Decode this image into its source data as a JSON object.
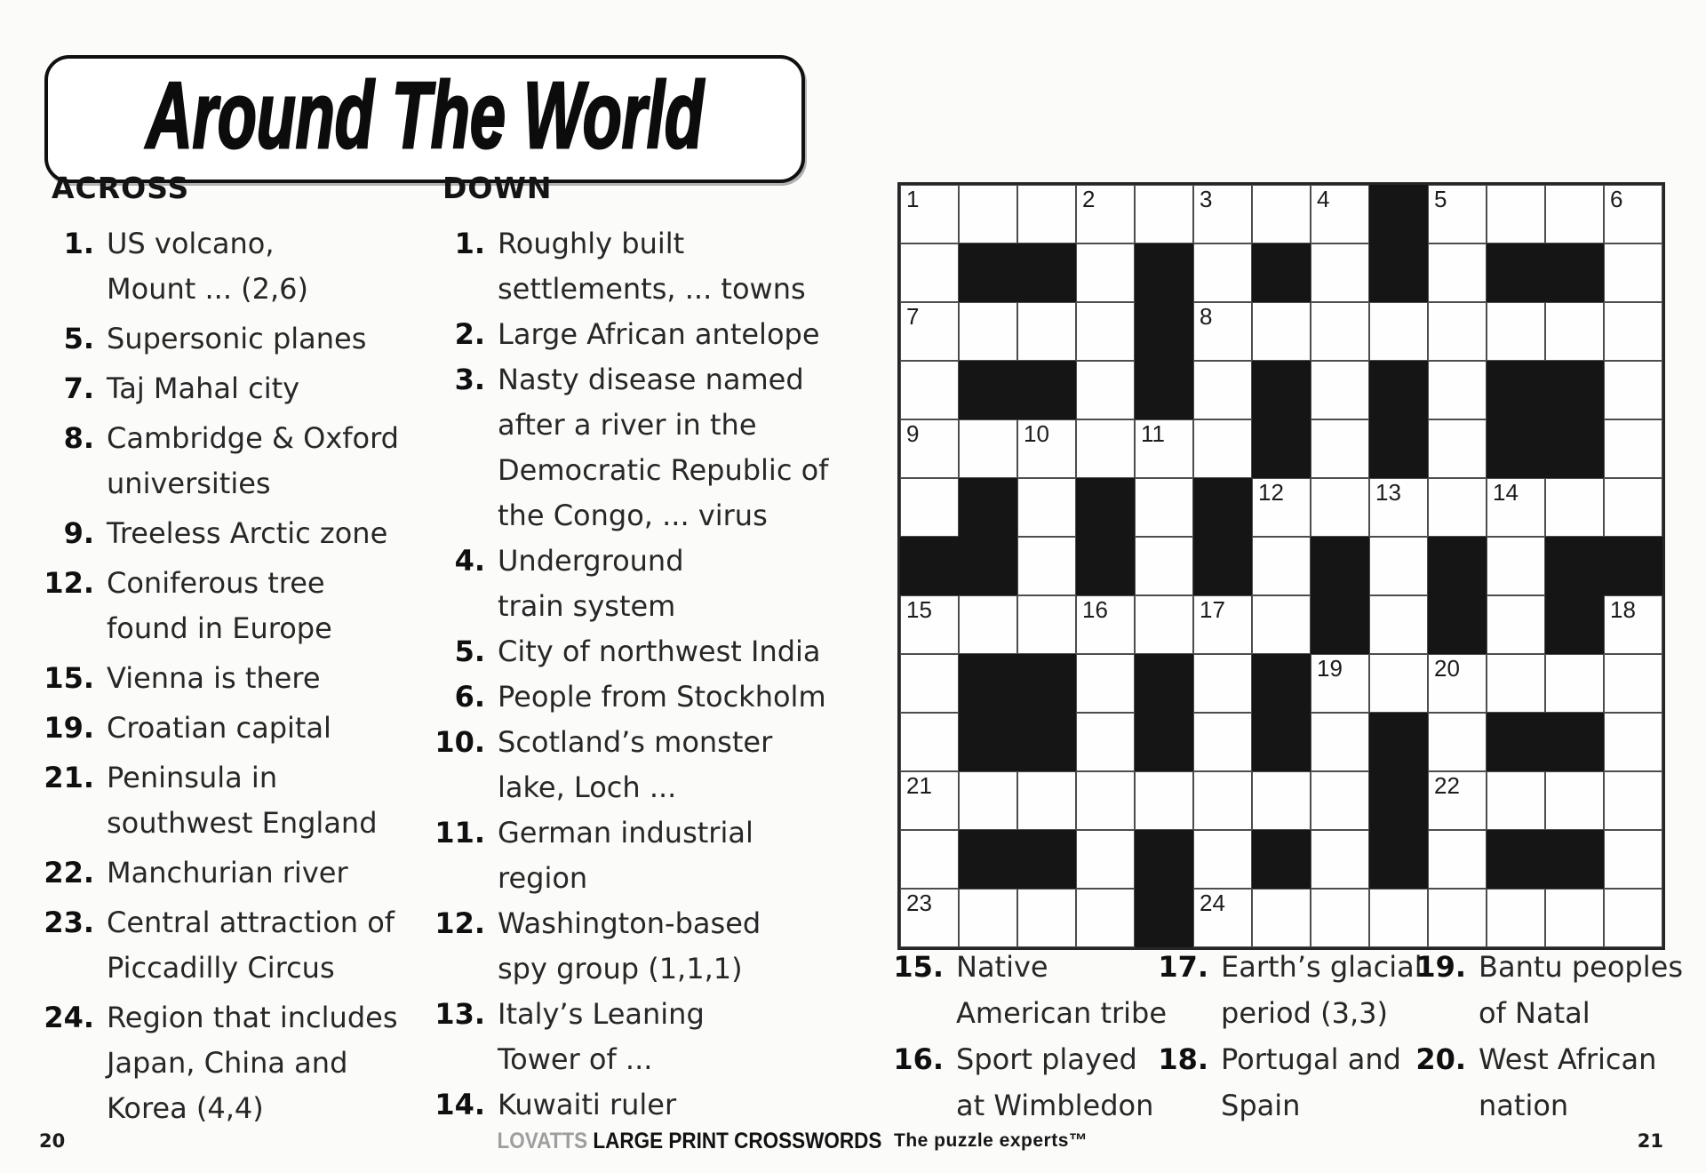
{
  "title": "Around The World",
  "page": {
    "left_page_number": "20",
    "right_page_number": "21",
    "footer_brand_light": "LOVATTS ",
    "footer_brand_bold": "LARGE PRINT CROSSWORDS",
    "tagline": "The puzzle experts™"
  },
  "colors": {
    "cell_black": "#151515",
    "paper": "#fbfbfa",
    "text": "#242424",
    "brand_gray": "#9e9e9e"
  },
  "across": {
    "header": "ACROSS",
    "clues": [
      {
        "num": "1.",
        "lines": [
          "US volcano,",
          "Mount ... (2,6)"
        ]
      },
      {
        "num": "5.",
        "lines": [
          "Supersonic planes"
        ]
      },
      {
        "num": "7.",
        "lines": [
          "Taj Mahal city"
        ]
      },
      {
        "num": "8.",
        "lines": [
          "Cambridge & Oxford",
          "universities"
        ]
      },
      {
        "num": "9.",
        "lines": [
          "Treeless Arctic zone"
        ]
      },
      {
        "num": "12.",
        "lines": [
          "Coniferous tree",
          "found in Europe"
        ]
      },
      {
        "num": "15.",
        "lines": [
          "Vienna is there"
        ]
      },
      {
        "num": "19.",
        "lines": [
          "Croatian capital"
        ]
      },
      {
        "num": "21.",
        "lines": [
          "Peninsula in",
          "southwest England"
        ]
      },
      {
        "num": "22.",
        "lines": [
          "Manchurian river"
        ]
      },
      {
        "num": "23.",
        "lines": [
          "Central attraction of",
          "Piccadilly Circus"
        ]
      },
      {
        "num": "24.",
        "lines": [
          "Region that includes",
          "Japan, China and",
          "Korea (4,4)"
        ]
      }
    ]
  },
  "down": {
    "header": "DOWN",
    "clues": [
      {
        "num": "1.",
        "lines": [
          "Roughly built",
          "settlements, ... towns"
        ]
      },
      {
        "num": "2.",
        "lines": [
          "Large African antelope"
        ]
      },
      {
        "num": "3.",
        "lines": [
          "Nasty disease named",
          "after a river in the",
          "Democratic Republic of",
          "the Congo, ... virus"
        ]
      },
      {
        "num": "4.",
        "lines": [
          "Underground",
          "train system"
        ]
      },
      {
        "num": "5.",
        "lines": [
          "City of northwest India"
        ]
      },
      {
        "num": "6.",
        "lines": [
          "People from Stockholm"
        ]
      },
      {
        "num": "10.",
        "lines": [
          "Scotland’s monster",
          "lake, Loch ..."
        ]
      },
      {
        "num": "11.",
        "lines": [
          "German industrial",
          "region"
        ]
      },
      {
        "num": "12.",
        "lines": [
          "Washington-based",
          "spy group (1,1,1)"
        ]
      },
      {
        "num": "13.",
        "lines": [
          "Italy’s Leaning",
          "Tower of ..."
        ]
      },
      {
        "num": "14.",
        "lines": [
          "Kuwaiti ruler"
        ]
      }
    ]
  },
  "bottom_clues": {
    "columns": [
      [
        {
          "num": "15.",
          "lines": [
            "Native",
            "American tribe"
          ]
        },
        {
          "num": "16.",
          "lines": [
            "Sport played",
            "at Wimbledon"
          ]
        }
      ],
      [
        {
          "num": "17.",
          "lines": [
            "Earth’s glacial",
            "period (3,3)"
          ]
        },
        {
          "num": "18.",
          "lines": [
            "Portugal and",
            "Spain"
          ]
        }
      ],
      [
        {
          "num": "19.",
          "lines": [
            "Bantu peoples",
            "of Natal"
          ]
        },
        {
          "num": "20.",
          "lines": [
            "West African",
            "nation"
          ]
        }
      ]
    ]
  },
  "grid": {
    "size": 13,
    "black": [
      "0000000010000",
      "0110101010110",
      "0000100000000",
      "0110101010110",
      "0000001010110",
      "0101010000000",
      "1101010101011",
      "0000000101010",
      "0110101000000",
      "0110101010110",
      "0000000010000",
      "0110101010110",
      "0000100000000"
    ],
    "numbers": [
      {
        "n": "1",
        "r": 0,
        "c": 0
      },
      {
        "n": "2",
        "r": 0,
        "c": 3
      },
      {
        "n": "3",
        "r": 0,
        "c": 5
      },
      {
        "n": "4",
        "r": 0,
        "c": 7
      },
      {
        "n": "5",
        "r": 0,
        "c": 9
      },
      {
        "n": "6",
        "r": 0,
        "c": 12
      },
      {
        "n": "7",
        "r": 2,
        "c": 0
      },
      {
        "n": "8",
        "r": 2,
        "c": 5
      },
      {
        "n": "9",
        "r": 4,
        "c": 0
      },
      {
        "n": "10",
        "r": 4,
        "c": 2
      },
      {
        "n": "11",
        "r": 4,
        "c": 4
      },
      {
        "n": "12",
        "r": 5,
        "c": 6
      },
      {
        "n": "13",
        "r": 5,
        "c": 8
      },
      {
        "n": "14",
        "r": 5,
        "c": 10
      },
      {
        "n": "15",
        "r": 7,
        "c": 0
      },
      {
        "n": "16",
        "r": 7,
        "c": 3
      },
      {
        "n": "17",
        "r": 7,
        "c": 5
      },
      {
        "n": "18",
        "r": 7,
        "c": 12
      },
      {
        "n": "19",
        "r": 8,
        "c": 7
      },
      {
        "n": "20",
        "r": 8,
        "c": 9
      },
      {
        "n": "21",
        "r": 10,
        "c": 0
      },
      {
        "n": "22",
        "r": 10,
        "c": 9
      },
      {
        "n": "23",
        "r": 12,
        "c": 0
      },
      {
        "n": "24",
        "r": 12,
        "c": 5
      }
    ]
  }
}
